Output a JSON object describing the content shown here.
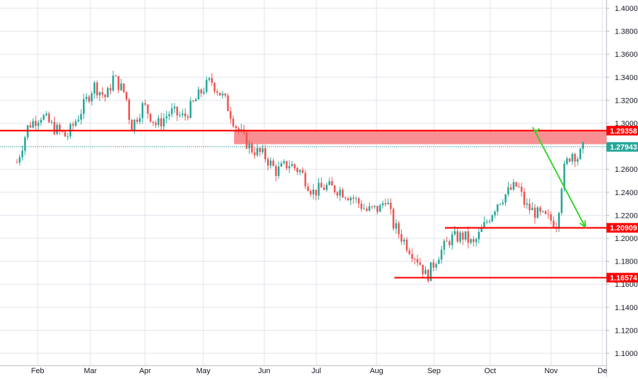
{
  "chart_data": {
    "type": "candlestick",
    "title": "",
    "xlabel": "",
    "ylabel": "",
    "ylim": [
      1.09,
      1.41
    ],
    "y_ticks": [
      "1.10000",
      "1.12000",
      "1.14000",
      "1.16000",
      "1.18000",
      "1.20000",
      "1.22000",
      "1.24000",
      "1.26000",
      "1.28000",
      "1.30000",
      "1.32000",
      "1.34000",
      "1.36000",
      "1.38000",
      "1.40000"
    ],
    "x_ticks": [
      "Feb",
      "Mar",
      "Apr",
      "May",
      "Jun",
      "Jul",
      "Aug",
      "Sep",
      "Oct",
      "Nov",
      "De"
    ],
    "grid": true,
    "colors": {
      "up": "#26a69a",
      "down": "#ef5350",
      "level": "#ff0000",
      "zone": "#f77c80",
      "arrow": "#33d42a",
      "current_line": "#26a69a",
      "grid": "#e0e3eb"
    },
    "key_points": [
      {
        "date": "Jan 21",
        "close": 1.266
      },
      {
        "date": "Jan 27",
        "close": 1.298
      },
      {
        "date": "Feb 03",
        "close": 1.307
      },
      {
        "date": "Feb 10",
        "close": 1.296
      },
      {
        "date": "Feb 17",
        "close": 1.288
      },
      {
        "date": "Feb 24",
        "close": 1.308
      },
      {
        "date": "Mar 03",
        "close": 1.333
      },
      {
        "date": "Mar 10",
        "close": 1.322
      },
      {
        "date": "Mar 14",
        "close": 1.34
      },
      {
        "date": "Mar 21",
        "close": 1.325
      },
      {
        "date": "Mar 24",
        "close": 1.296
      },
      {
        "date": "Mar 31",
        "close": 1.316
      },
      {
        "date": "Apr 07",
        "close": 1.298
      },
      {
        "date": "Apr 14",
        "close": 1.31
      },
      {
        "date": "Apr 21",
        "close": 1.305
      },
      {
        "date": "May 01",
        "close": 1.33
      },
      {
        "date": "May 05",
        "close": 1.337
      },
      {
        "date": "May 12",
        "close": 1.32
      },
      {
        "date": "May 18",
        "close": 1.296
      },
      {
        "date": "May 25",
        "close": 1.278
      },
      {
        "date": "Jun 01",
        "close": 1.272
      },
      {
        "date": "Jun 08",
        "close": 1.258
      },
      {
        "date": "Jun 15",
        "close": 1.265
      },
      {
        "date": "Jun 22",
        "close": 1.258
      },
      {
        "date": "Jun 29",
        "close": 1.24
      },
      {
        "date": "Jul 06",
        "close": 1.245
      },
      {
        "date": "Jul 13",
        "close": 1.242
      },
      {
        "date": "Jul 20",
        "close": 1.235
      },
      {
        "date": "Jul 27",
        "close": 1.224
      },
      {
        "date": "Aug 03",
        "close": 1.226
      },
      {
        "date": "Aug 06",
        "close": 1.236
      },
      {
        "date": "Aug 10",
        "close": 1.212
      },
      {
        "date": "Aug 17",
        "close": 1.195
      },
      {
        "date": "Aug 24",
        "close": 1.18
      },
      {
        "date": "Aug 28",
        "close": 1.166
      },
      {
        "date": "Sep 03",
        "close": 1.185
      },
      {
        "date": "Sep 10",
        "close": 1.2
      },
      {
        "date": "Sep 17",
        "close": 1.202
      },
      {
        "date": "Sep 22",
        "close": 1.194
      },
      {
        "date": "Sep 29",
        "close": 1.214
      },
      {
        "date": "Oct 05",
        "close": 1.232
      },
      {
        "date": "Oct 12",
        "close": 1.243
      },
      {
        "date": "Oct 15",
        "close": 1.246
      },
      {
        "date": "Oct 19",
        "close": 1.228
      },
      {
        "date": "Oct 26",
        "close": 1.22
      },
      {
        "date": "Nov 02",
        "close": 1.215
      },
      {
        "date": "Nov 05",
        "close": 1.212
      },
      {
        "date": "Nov 06",
        "close": 1.238
      },
      {
        "date": "Nov 09",
        "close": 1.262
      },
      {
        "date": "Nov 13",
        "close": 1.275
      },
      {
        "date": "Nov 17",
        "close": 1.27
      },
      {
        "date": "Nov 20",
        "close": 1.279
      }
    ],
    "levels": [
      {
        "value": 1.29358,
        "label": "1.29358"
      },
      {
        "value": 1.20909,
        "label": "1.20909"
      },
      {
        "value": 1.16574,
        "label": "1.16574"
      }
    ],
    "zone": {
      "from": 1.2818,
      "to": 1.2936
    },
    "current_price": {
      "value": 1.27943,
      "label": "1.27943"
    },
    "arrow": {
      "from_value": 1.2935,
      "to_value": 1.2091
    }
  }
}
